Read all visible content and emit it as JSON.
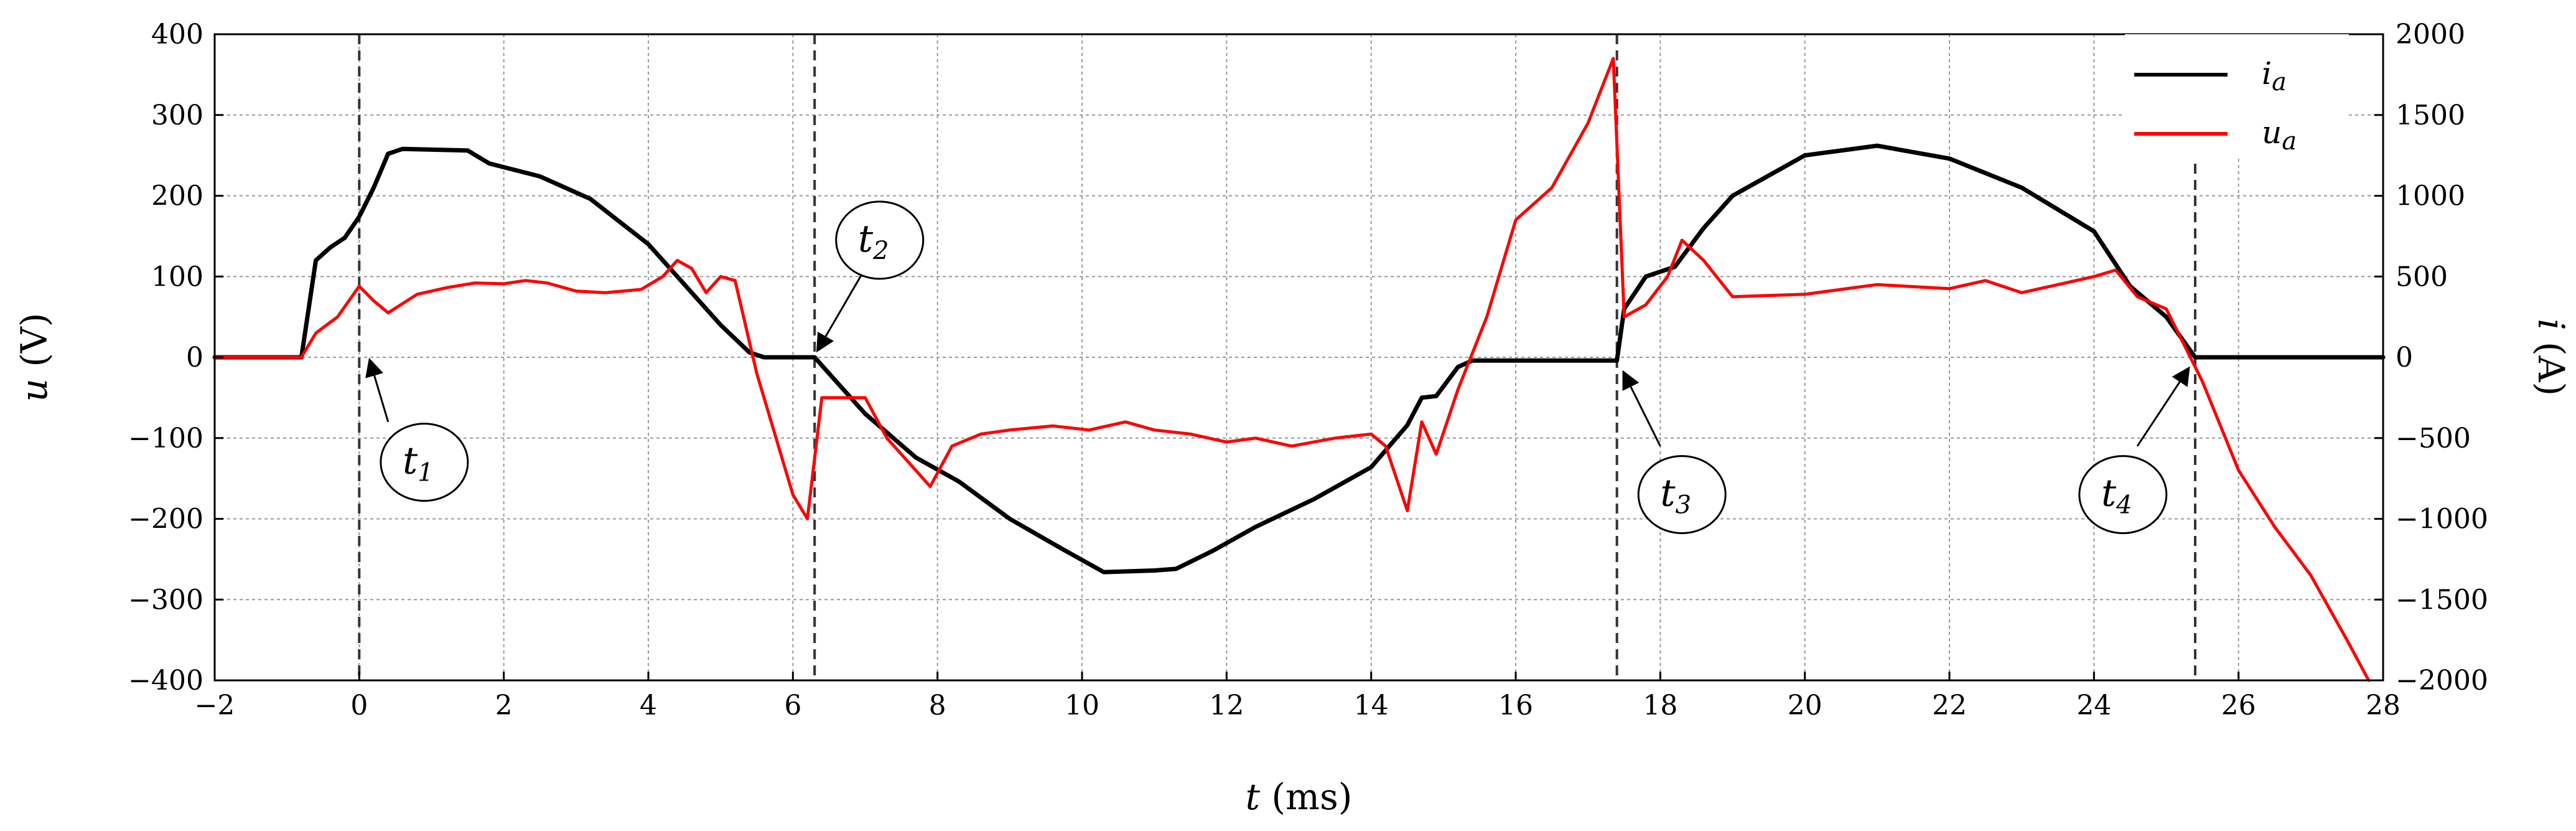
{
  "chart_data": {
    "type": "line",
    "xlabel": {
      "var": "t",
      "unit": " (ms)"
    },
    "ylabel_left": {
      "var": "u",
      "unit": " (V)"
    },
    "ylabel_right": {
      "var": "i",
      "unit": " (A)"
    },
    "xlim": [
      -2,
      28
    ],
    "ylim_left": [
      -400,
      400
    ],
    "ylim_right": [
      -2000,
      2000
    ],
    "x_ticks": [
      -2,
      0,
      2,
      4,
      6,
      8,
      10,
      12,
      14,
      16,
      18,
      20,
      22,
      24,
      26,
      28
    ],
    "y_ticks_left": [
      -400,
      -300,
      -200,
      -100,
      0,
      100,
      200,
      300,
      400
    ],
    "y_ticks_right": [
      -2000,
      -1500,
      -1000,
      -500,
      0,
      500,
      1000,
      1500,
      2000
    ],
    "grid": true,
    "legend_position": "top-right",
    "series": [
      {
        "name": "i_a",
        "label_main": "i",
        "label_sub": "a",
        "axis": "right",
        "color": "#000000",
        "points": [
          [
            -2,
            0
          ],
          [
            -0.8,
            0
          ],
          [
            -0.7,
            300
          ],
          [
            -0.6,
            600
          ],
          [
            -0.4,
            680
          ],
          [
            -0.2,
            740
          ],
          [
            0,
            870
          ],
          [
            0.2,
            1050
          ],
          [
            0.4,
            1260
          ],
          [
            0.6,
            1290
          ],
          [
            1.5,
            1280
          ],
          [
            1.8,
            1200
          ],
          [
            2.5,
            1120
          ],
          [
            3.2,
            980
          ],
          [
            4.0,
            700
          ],
          [
            4.5,
            450
          ],
          [
            5.0,
            200
          ],
          [
            5.4,
            30
          ],
          [
            5.6,
            0
          ],
          [
            6.3,
            0
          ],
          [
            6.6,
            -150
          ],
          [
            7.0,
            -350
          ],
          [
            7.7,
            -620
          ],
          [
            8.3,
            -770
          ],
          [
            9.0,
            -1000
          ],
          [
            9.7,
            -1180
          ],
          [
            10.3,
            -1330
          ],
          [
            11.0,
            -1320
          ],
          [
            11.3,
            -1310
          ],
          [
            11.8,
            -1200
          ],
          [
            12.4,
            -1050
          ],
          [
            13.2,
            -880
          ],
          [
            14.0,
            -680
          ],
          [
            14.5,
            -420
          ],
          [
            14.7,
            -250
          ],
          [
            14.9,
            -240
          ],
          [
            15.2,
            -60
          ],
          [
            15.4,
            -20
          ],
          [
            17.4,
            -20
          ],
          [
            17.5,
            300
          ],
          [
            17.8,
            500
          ],
          [
            18.2,
            560
          ],
          [
            18.6,
            800
          ],
          [
            19.0,
            1000
          ],
          [
            20.0,
            1250
          ],
          [
            21.0,
            1310
          ],
          [
            22.0,
            1230
          ],
          [
            23.0,
            1050
          ],
          [
            24.0,
            780
          ],
          [
            24.5,
            440
          ],
          [
            25.0,
            250
          ],
          [
            25.4,
            0
          ],
          [
            26.5,
            0
          ],
          [
            28,
            0
          ]
        ]
      },
      {
        "name": "u_a",
        "label_main": "u",
        "label_sub": "a",
        "axis": "left",
        "color": "#ff0000",
        "points": [
          [
            -2,
            0
          ],
          [
            -0.8,
            0
          ],
          [
            -0.6,
            30
          ],
          [
            -0.3,
            50
          ],
          [
            0,
            88
          ],
          [
            0.2,
            70
          ],
          [
            0.4,
            55
          ],
          [
            0.8,
            78
          ],
          [
            1.2,
            86
          ],
          [
            1.6,
            92
          ],
          [
            2,
            91
          ],
          [
            2.3,
            95
          ],
          [
            2.6,
            92
          ],
          [
            3.0,
            82
          ],
          [
            3.4,
            80
          ],
          [
            3.9,
            84
          ],
          [
            4.2,
            100
          ],
          [
            4.4,
            120
          ],
          [
            4.6,
            110
          ],
          [
            4.8,
            80
          ],
          [
            5.0,
            100
          ],
          [
            5.2,
            95
          ],
          [
            5.5,
            -20
          ],
          [
            6.0,
            -170
          ],
          [
            6.2,
            -200
          ],
          [
            6.4,
            -50
          ],
          [
            7.0,
            -50
          ],
          [
            7.3,
            -100
          ],
          [
            7.6,
            -130
          ],
          [
            7.9,
            -160
          ],
          [
            8.2,
            -110
          ],
          [
            8.6,
            -95
          ],
          [
            9.0,
            -90
          ],
          [
            9.6,
            -85
          ],
          [
            10.1,
            -90
          ],
          [
            10.6,
            -80
          ],
          [
            11.0,
            -90
          ],
          [
            11.5,
            -95
          ],
          [
            12.0,
            -105
          ],
          [
            12.4,
            -100
          ],
          [
            12.9,
            -110
          ],
          [
            13.5,
            -100
          ],
          [
            14.0,
            -95
          ],
          [
            14.2,
            -110
          ],
          [
            14.5,
            -190
          ],
          [
            14.7,
            -80
          ],
          [
            14.9,
            -120
          ],
          [
            15.2,
            -40
          ],
          [
            15.6,
            50
          ],
          [
            16.0,
            170
          ],
          [
            16.5,
            210
          ],
          [
            17.0,
            290
          ],
          [
            17.35,
            370
          ],
          [
            17.5,
            50
          ],
          [
            17.8,
            65
          ],
          [
            18.1,
            100
          ],
          [
            18.3,
            145
          ],
          [
            18.6,
            120
          ],
          [
            19.0,
            75
          ],
          [
            20.0,
            78
          ],
          [
            21.0,
            90
          ],
          [
            22.0,
            85
          ],
          [
            22.5,
            95
          ],
          [
            23.0,
            80
          ],
          [
            24.0,
            100
          ],
          [
            24.3,
            108
          ],
          [
            24.6,
            75
          ],
          [
            25.0,
            60
          ],
          [
            25.5,
            -30
          ],
          [
            26.0,
            -140
          ],
          [
            26.5,
            -210
          ],
          [
            27.0,
            -270
          ],
          [
            27.5,
            -350
          ],
          [
            27.8,
            -400
          ]
        ]
      }
    ],
    "vlines": [
      0,
      6.3,
      17.4,
      25.4
    ],
    "annotations": [
      {
        "main": "t",
        "sub": "1",
        "label_x": 0.9,
        "label_y": -130,
        "arrow_from": [
          0.4,
          -80
        ],
        "arrow_to": [
          0.15,
          -5
        ]
      },
      {
        "main": "t",
        "sub": "2",
        "label_x": 7.2,
        "label_y": 145,
        "arrow_from": [
          7.0,
          110
        ],
        "arrow_to": [
          6.35,
          10
        ]
      },
      {
        "main": "t",
        "sub": "3",
        "label_x": 18.3,
        "label_y": -170,
        "arrow_from": [
          18.0,
          -110
        ],
        "arrow_to": [
          17.5,
          -20
        ]
      },
      {
        "main": "t",
        "sub": "4",
        "label_x": 24.4,
        "label_y": -170,
        "arrow_from": [
          24.6,
          -110
        ],
        "arrow_to": [
          25.3,
          -15
        ]
      }
    ]
  }
}
